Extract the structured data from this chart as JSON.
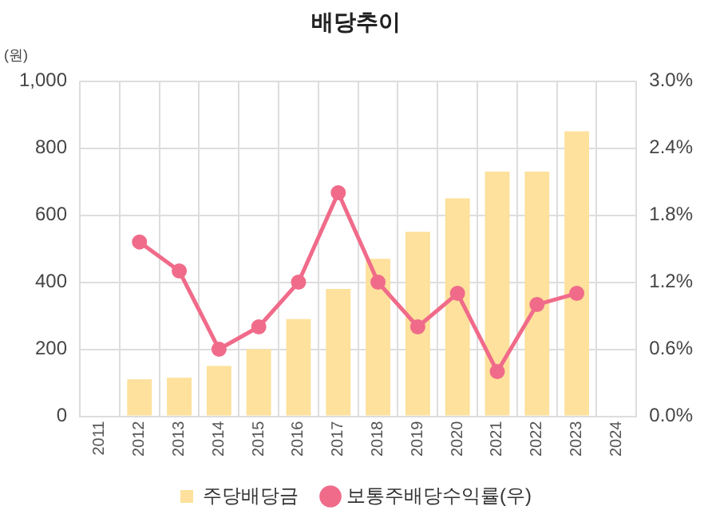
{
  "chart_data": {
    "type": "bar",
    "title": "배당추이",
    "ylabel": "(원)",
    "categories": [
      "2011",
      "2012",
      "2013",
      "2014",
      "2015",
      "2016",
      "2017",
      "2018",
      "2019",
      "2020",
      "2021",
      "2022",
      "2023",
      "2024"
    ],
    "series": [
      {
        "name": "주당배당금",
        "color": "#fde19c",
        "values": [
          null,
          110,
          115,
          150,
          200,
          290,
          380,
          470,
          550,
          650,
          730,
          730,
          850,
          null
        ]
      },
      {
        "name": "보통주배당수익률(우)",
        "type": "line",
        "axis": "y2",
        "color": "#f06b8a",
        "values": [
          null,
          1.56,
          1.3,
          0.6,
          0.8,
          1.2,
          2.0,
          1.2,
          0.8,
          1.1,
          0.4,
          1.0,
          1.1,
          null
        ]
      }
    ],
    "ylim": [
      0,
      1000
    ],
    "yticks": [
      0,
      200,
      400,
      600,
      800,
      {
        "value": 1000,
        "label": "1,000"
      }
    ],
    "y2lim": [
      0,
      3
    ],
    "y2ticks": [
      {
        "value": 0,
        "label": "0.0%"
      },
      {
        "value": 0.6,
        "label": "0.6%"
      },
      {
        "value": 1.2,
        "label": "1.2%"
      },
      {
        "value": 1.8,
        "label": "1.8%"
      },
      {
        "value": 2.4,
        "label": "2.4%"
      },
      {
        "value": 3,
        "label": "3.0%"
      }
    ],
    "grid": true,
    "legend": "bottom",
    "marker": "circle",
    "line_style": "solid"
  }
}
